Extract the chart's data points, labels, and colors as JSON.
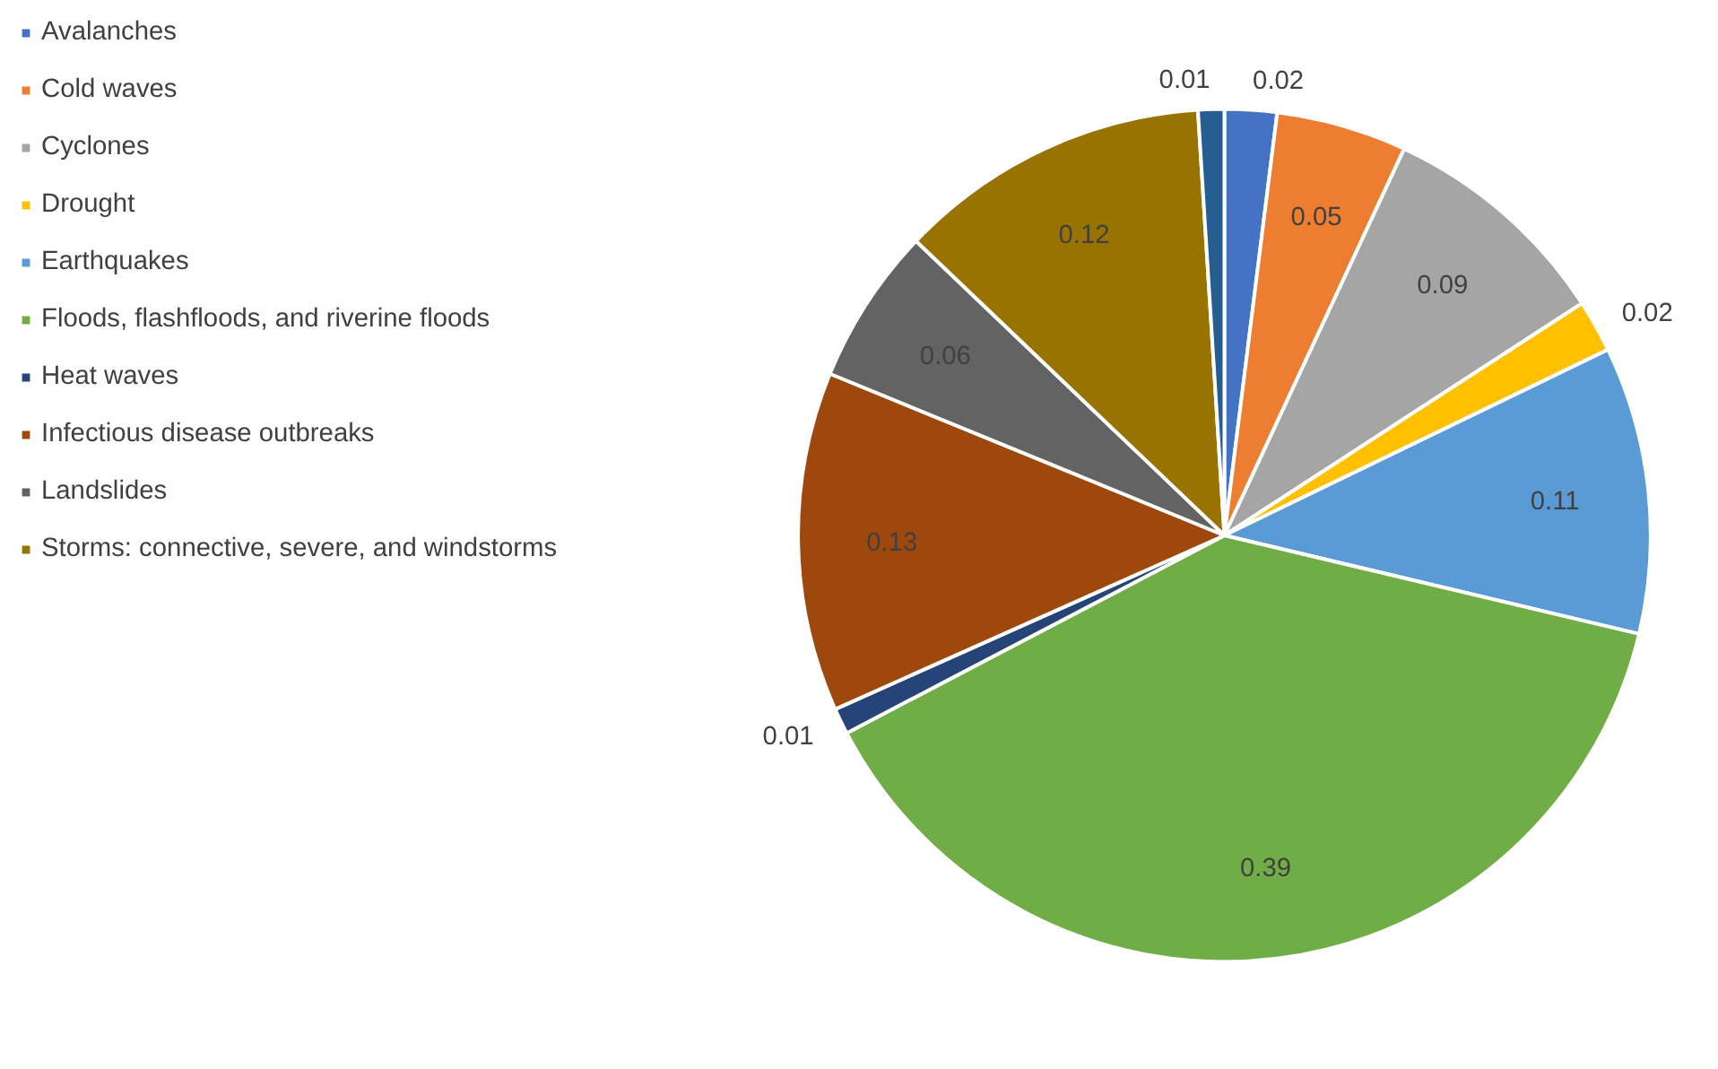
{
  "chart_data": {
    "type": "pie",
    "categories": [
      "Avalanches",
      "Cold waves",
      "Cyclones",
      "Drought",
      "Earthquakes",
      "Floods, flashfloods, and riverine floods",
      "Heat waves",
      "Infectious disease outbreaks",
      "Landslides",
      "Storms: connective, severe, and windstorms",
      null
    ],
    "values": [
      0.02,
      0.05,
      0.09,
      0.02,
      0.11,
      0.39,
      0.01,
      0.13,
      0.06,
      0.12,
      0.01
    ],
    "colors": [
      "#4472c4",
      "#ed7d31",
      "#a5a5a5",
      "#ffc000",
      "#5b9bd5",
      "#70ad47",
      "#264478",
      "#9e480e",
      "#636363",
      "#997300",
      "#255e91"
    ],
    "data_labels": true,
    "legend": "left"
  }
}
